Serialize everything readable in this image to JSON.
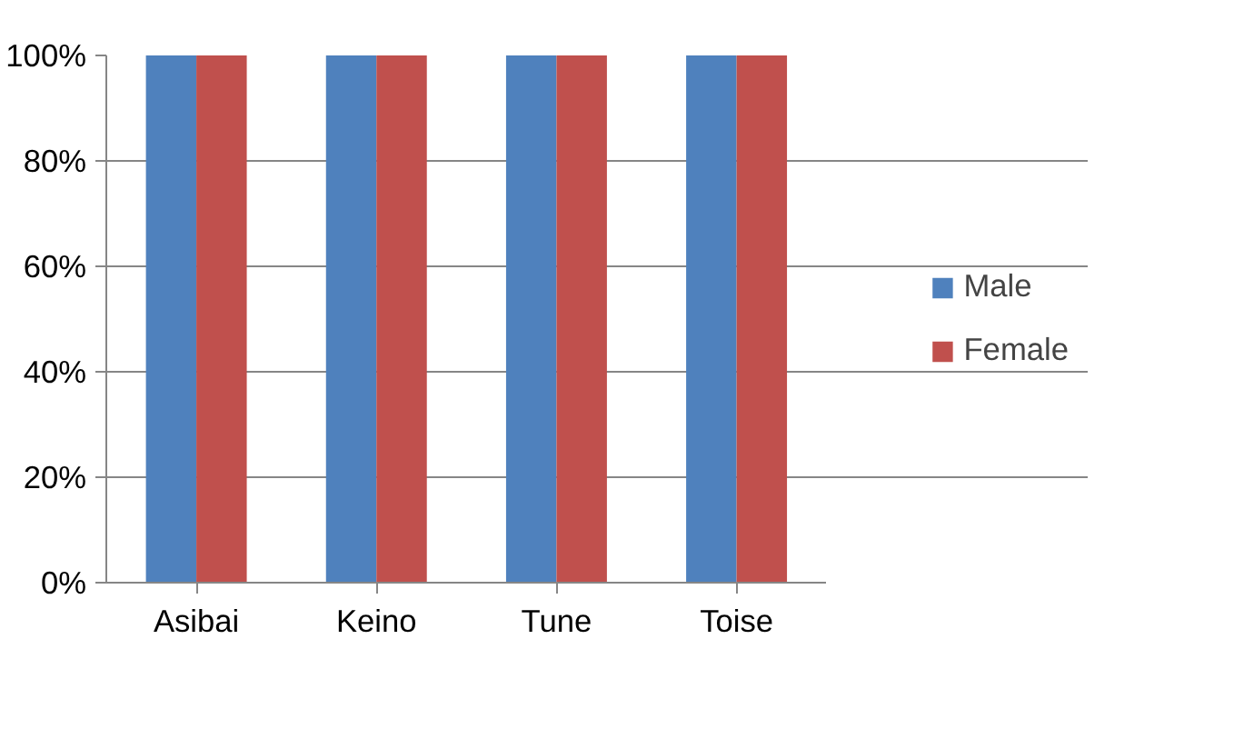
{
  "chart_data": {
    "type": "bar",
    "categories": [
      "Asibai",
      "Keino",
      "Tune",
      "Toise"
    ],
    "series": [
      {
        "name": "Male",
        "color": "#4f81bd",
        "values": [
          100,
          100,
          100,
          100
        ]
      },
      {
        "name": "Female",
        "color": "#c0504d",
        "values": [
          100,
          100,
          100,
          100
        ]
      }
    ],
    "ylim": [
      0,
      100
    ],
    "yticks": [
      {
        "value": 0,
        "label": "0%"
      },
      {
        "value": 20,
        "label": "20%"
      },
      {
        "value": 40,
        "label": "40%"
      },
      {
        "value": 60,
        "label": "60%"
      },
      {
        "value": 80,
        "label": "80%"
      },
      {
        "value": 100,
        "label": "100%"
      }
    ],
    "grid": "y",
    "legend": "right"
  }
}
